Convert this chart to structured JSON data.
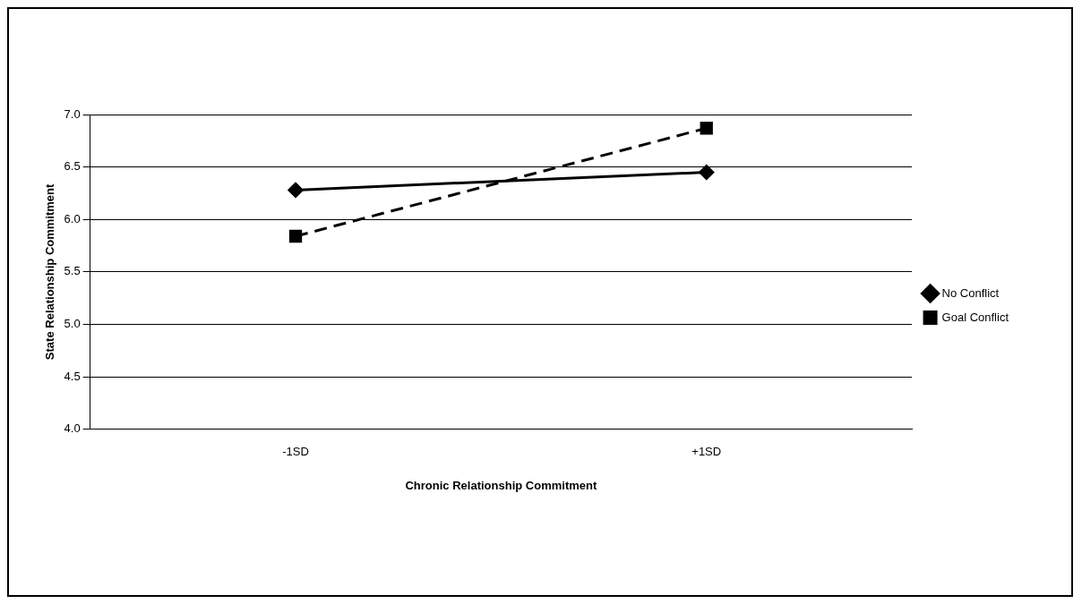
{
  "chart_data": {
    "type": "line",
    "xlabel": "Chronic Relationship Commitment",
    "ylabel": "State Relationship Commitment",
    "categories": [
      "-1SD",
      "+1SD"
    ],
    "series": [
      {
        "name": "No Conflict",
        "color": "#000000",
        "values": [
          6.28,
          6.45
        ],
        "marker": "diamond",
        "line_style": "solid"
      },
      {
        "name": "Goal Conflict",
        "color": "#000000",
        "values": [
          5.84,
          6.87
        ],
        "marker": "square",
        "line_style": "dashed"
      }
    ],
    "ylim": [
      4.0,
      7.0
    ],
    "yticks": [
      {
        "value": 4,
        "label": "4.0"
      },
      {
        "value": 4.5,
        "label": "4.5"
      },
      {
        "value": 5,
        "label": "5.0"
      },
      {
        "value": 5.5,
        "label": "5.5"
      },
      {
        "value": 6,
        "label": "6.0"
      },
      {
        "value": 6.5,
        "label": "6.5"
      },
      {
        "value": 7,
        "label": "7.0"
      }
    ],
    "grid": "y",
    "legend": "right"
  }
}
